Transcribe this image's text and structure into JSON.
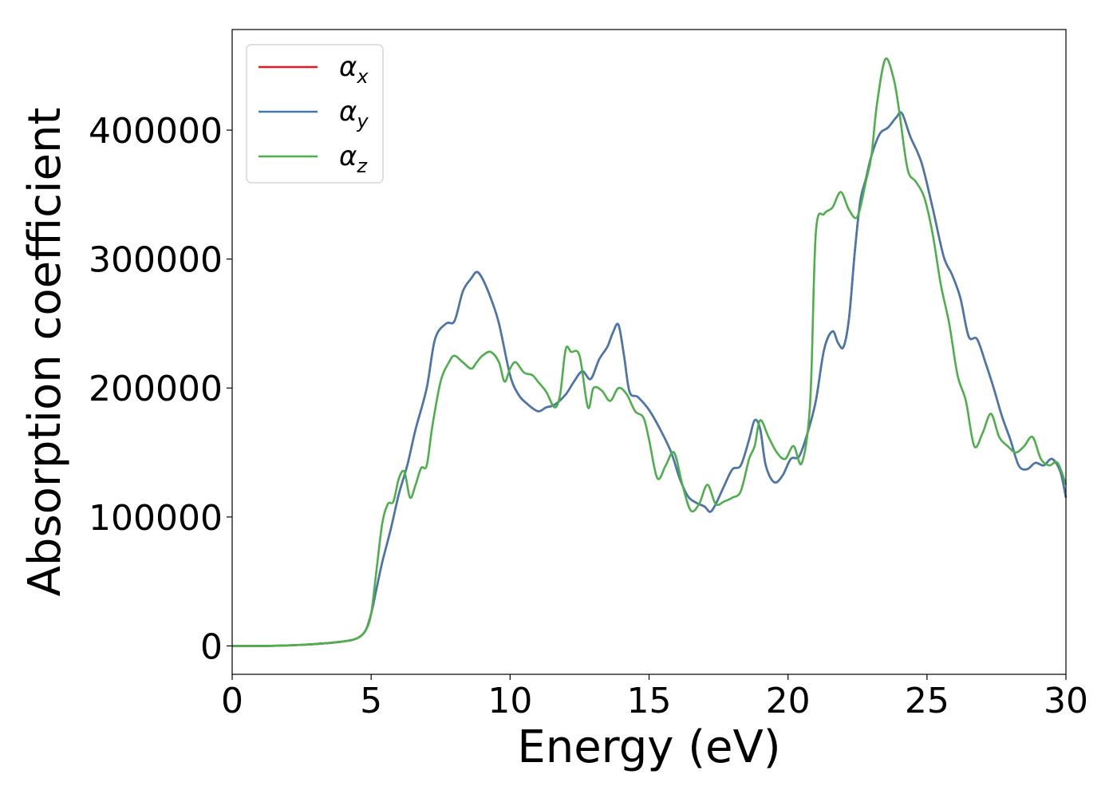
{
  "chart_data": {
    "type": "line",
    "title": "",
    "xlabel": "Energy (eV)",
    "ylabel": "Absorption coefficient",
    "xlim": [
      0,
      30
    ],
    "ylim": [
      -22000,
      478000
    ],
    "xticks": [
      0,
      5,
      10,
      15,
      20,
      25,
      30
    ],
    "yticks": [
      0,
      100000,
      200000,
      300000,
      400000
    ],
    "grid": false,
    "legend_position": "top-left",
    "series": [
      {
        "name": "α",
        "subscript": "x",
        "color": "#e41a1c",
        "x": [
          0,
          1,
          2,
          3,
          4,
          4.5,
          4.8,
          5.0,
          5.2,
          5.4,
          5.7,
          6.0,
          6.3,
          6.6,
          7.0,
          7.3,
          7.7,
          8.0,
          8.3,
          8.6,
          8.8,
          9.0,
          9.3,
          9.6,
          10.0,
          10.3,
          10.6,
          11.0,
          11.3,
          11.6,
          12.0,
          12.3,
          12.6,
          12.9,
          13.2,
          13.5,
          13.7,
          13.9,
          14.1,
          14.3,
          14.6,
          15.0,
          15.4,
          15.8,
          16.1,
          16.4,
          16.7,
          17.0,
          17.2,
          17.4,
          17.7,
          18.0,
          18.3,
          18.6,
          18.8,
          19.0,
          19.2,
          19.5,
          19.8,
          20.1,
          20.4,
          20.7,
          21.0,
          21.3,
          21.6,
          21.8,
          22.0,
          22.2,
          22.4,
          22.6,
          22.8,
          23.0,
          23.3,
          23.6,
          23.9,
          24.1,
          24.4,
          24.8,
          25.2,
          25.6,
          25.9,
          26.2,
          26.5,
          26.8,
          27.1,
          27.4,
          27.7,
          28.0,
          28.3,
          28.6,
          28.9,
          29.2,
          29.5,
          29.8,
          30.0
        ],
        "values": [
          0,
          0,
          400,
          1500,
          3500,
          6000,
          12000,
          25000,
          45000,
          65000,
          90000,
          118000,
          140000,
          168000,
          200000,
          238000,
          250000,
          252000,
          275000,
          285000,
          290000,
          285000,
          270000,
          250000,
          210000,
          195000,
          188000,
          182000,
          185000,
          187000,
          195000,
          205000,
          213000,
          207000,
          222000,
          232000,
          243000,
          249000,
          225000,
          197000,
          193000,
          183000,
          168000,
          150000,
          130000,
          116000,
          111000,
          108000,
          104000,
          110000,
          124000,
          137000,
          140000,
          160000,
          175000,
          168000,
          140000,
          127000,
          132000,
          145000,
          147000,
          165000,
          190000,
          230000,
          244000,
          235000,
          232000,
          255000,
          305000,
          345000,
          362000,
          380000,
          397000,
          402000,
          410000,
          413000,
          395000,
          375000,
          340000,
          302000,
          288000,
          270000,
          240000,
          238000,
          220000,
          200000,
          178000,
          160000,
          140000,
          137000,
          142000,
          140000,
          145000,
          135000,
          115000
        ]
      },
      {
        "name": "α",
        "subscript": "y",
        "color": "#4478b0",
        "x": [
          0,
          1,
          2,
          3,
          4,
          4.5,
          4.8,
          5.0,
          5.2,
          5.4,
          5.7,
          6.0,
          6.3,
          6.6,
          7.0,
          7.3,
          7.7,
          8.0,
          8.3,
          8.6,
          8.8,
          9.0,
          9.3,
          9.6,
          10.0,
          10.3,
          10.6,
          11.0,
          11.3,
          11.6,
          12.0,
          12.3,
          12.6,
          12.9,
          13.2,
          13.5,
          13.7,
          13.9,
          14.1,
          14.3,
          14.6,
          15.0,
          15.4,
          15.8,
          16.1,
          16.4,
          16.7,
          17.0,
          17.2,
          17.4,
          17.7,
          18.0,
          18.3,
          18.6,
          18.8,
          19.0,
          19.2,
          19.5,
          19.8,
          20.1,
          20.4,
          20.7,
          21.0,
          21.3,
          21.6,
          21.8,
          22.0,
          22.2,
          22.4,
          22.6,
          22.8,
          23.0,
          23.3,
          23.6,
          23.9,
          24.1,
          24.4,
          24.8,
          25.2,
          25.6,
          25.9,
          26.2,
          26.5,
          26.8,
          27.1,
          27.4,
          27.7,
          28.0,
          28.3,
          28.6,
          28.9,
          29.2,
          29.5,
          29.8,
          30.0
        ],
        "values": [
          0,
          0,
          400,
          1500,
          3500,
          6000,
          12000,
          25000,
          45000,
          65000,
          90000,
          118000,
          140000,
          168000,
          200000,
          238000,
          250000,
          252000,
          275000,
          285000,
          290000,
          285000,
          270000,
          250000,
          210000,
          195000,
          188000,
          182000,
          185000,
          187000,
          195000,
          205000,
          213000,
          207000,
          222000,
          232000,
          243000,
          249000,
          225000,
          197000,
          193000,
          183000,
          168000,
          150000,
          130000,
          116000,
          111000,
          108000,
          104000,
          110000,
          124000,
          137000,
          140000,
          160000,
          175000,
          168000,
          140000,
          127000,
          132000,
          145000,
          147000,
          165000,
          190000,
          230000,
          244000,
          235000,
          232000,
          255000,
          305000,
          345000,
          362000,
          380000,
          397000,
          402000,
          410000,
          413000,
          395000,
          375000,
          340000,
          302000,
          288000,
          270000,
          240000,
          238000,
          220000,
          200000,
          178000,
          160000,
          140000,
          137000,
          142000,
          140000,
          145000,
          135000,
          115000
        ]
      },
      {
        "name": "α",
        "subscript": "z",
        "color": "#4daf4a",
        "x": [
          0,
          1,
          2,
          3,
          4,
          4.5,
          4.8,
          5.0,
          5.2,
          5.4,
          5.6,
          5.8,
          6.0,
          6.2,
          6.4,
          6.6,
          6.8,
          7.0,
          7.2,
          7.5,
          7.8,
          8.0,
          8.3,
          8.6,
          8.8,
          9.0,
          9.3,
          9.6,
          9.8,
          10.0,
          10.2,
          10.5,
          10.8,
          11.0,
          11.3,
          11.6,
          11.8,
          12.0,
          12.2,
          12.5,
          12.8,
          13.0,
          13.3,
          13.6,
          13.9,
          14.2,
          14.5,
          14.8,
          15.0,
          15.3,
          15.6,
          15.9,
          16.2,
          16.5,
          16.8,
          17.1,
          17.4,
          17.7,
          18.0,
          18.3,
          18.6,
          18.8,
          19.0,
          19.3,
          19.6,
          19.9,
          20.2,
          20.5,
          20.8,
          21.0,
          21.3,
          21.6,
          21.9,
          22.2,
          22.5,
          22.8,
          23.0,
          23.2,
          23.5,
          23.8,
          24.0,
          24.3,
          24.6,
          24.9,
          25.2,
          25.5,
          25.8,
          26.1,
          26.4,
          26.7,
          27.0,
          27.3,
          27.6,
          27.9,
          28.2,
          28.5,
          28.8,
          29.1,
          29.4,
          29.7,
          30.0
        ],
        "values": [
          0,
          0,
          400,
          1500,
          3500,
          6000,
          12000,
          25000,
          60000,
          95000,
          110000,
          112000,
          130000,
          135000,
          115000,
          125000,
          138000,
          140000,
          170000,
          205000,
          220000,
          225000,
          220000,
          215000,
          220000,
          225000,
          228000,
          220000,
          205000,
          215000,
          220000,
          212000,
          210000,
          205000,
          197000,
          185000,
          195000,
          230000,
          228000,
          225000,
          185000,
          200000,
          198000,
          190000,
          200000,
          195000,
          182000,
          177000,
          160000,
          130000,
          140000,
          150000,
          125000,
          105000,
          110000,
          125000,
          110000,
          112000,
          115000,
          120000,
          145000,
          155000,
          175000,
          162000,
          150000,
          145000,
          155000,
          142000,
          190000,
          320000,
          335000,
          340000,
          352000,
          338000,
          333000,
          360000,
          380000,
          420000,
          455000,
          440000,
          415000,
          370000,
          360000,
          348000,
          320000,
          280000,
          250000,
          210000,
          190000,
          155000,
          165000,
          180000,
          162000,
          155000,
          150000,
          155000,
          162000,
          145000,
          140000,
          142000,
          125000
        ]
      }
    ]
  }
}
